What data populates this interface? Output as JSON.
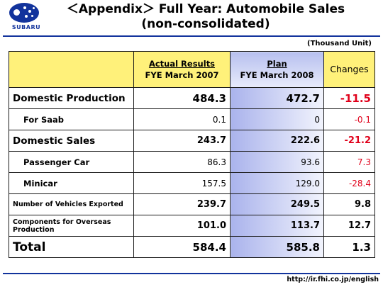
{
  "header": {
    "logo_text": "SUBARU",
    "title_line1": "＜Appendix＞ Full Year: Automobile Sales",
    "title_line2": "(non-consolidated)",
    "unit": "(Thousand Unit)"
  },
  "table": {
    "columns": {
      "actual_line1": "Actual Results",
      "actual_line2": "FYE March 2007",
      "plan_line1": "Plan",
      "plan_line2": "FYE March 2008",
      "changes": "Changes"
    },
    "rows": [
      {
        "label": "Domestic Production",
        "actual": "484.3",
        "plan": "472.7",
        "change": "-11.5"
      },
      {
        "label": "For Saab",
        "actual": "0.1",
        "plan": "0",
        "change": "-0.1"
      },
      {
        "label": "Domestic Sales",
        "actual": "243.7",
        "plan": "222.6",
        "change": "-21.2"
      },
      {
        "label": "Passenger Car",
        "actual": "86.3",
        "plan": "93.6",
        "change": "7.3"
      },
      {
        "label": "Minicar",
        "actual": "157.5",
        "plan": "129.0",
        "change": "-28.4"
      },
      {
        "label": "Number of Vehicles Exported",
        "actual": "239.7",
        "plan": "249.5",
        "change": "9.8"
      },
      {
        "label": "Components for Overseas Production",
        "actual": "101.0",
        "plan": "113.7",
        "change": "12.7"
      },
      {
        "label": "Total",
        "actual": "584.4",
        "plan": "585.8",
        "change": "1.3"
      }
    ]
  },
  "footer": {
    "url": "http://ir.fhi.co.jp/english"
  },
  "colors": {
    "brand_blue": "#12339c",
    "header_yellow": "#fff17a",
    "negative_red": "#e0001a"
  }
}
